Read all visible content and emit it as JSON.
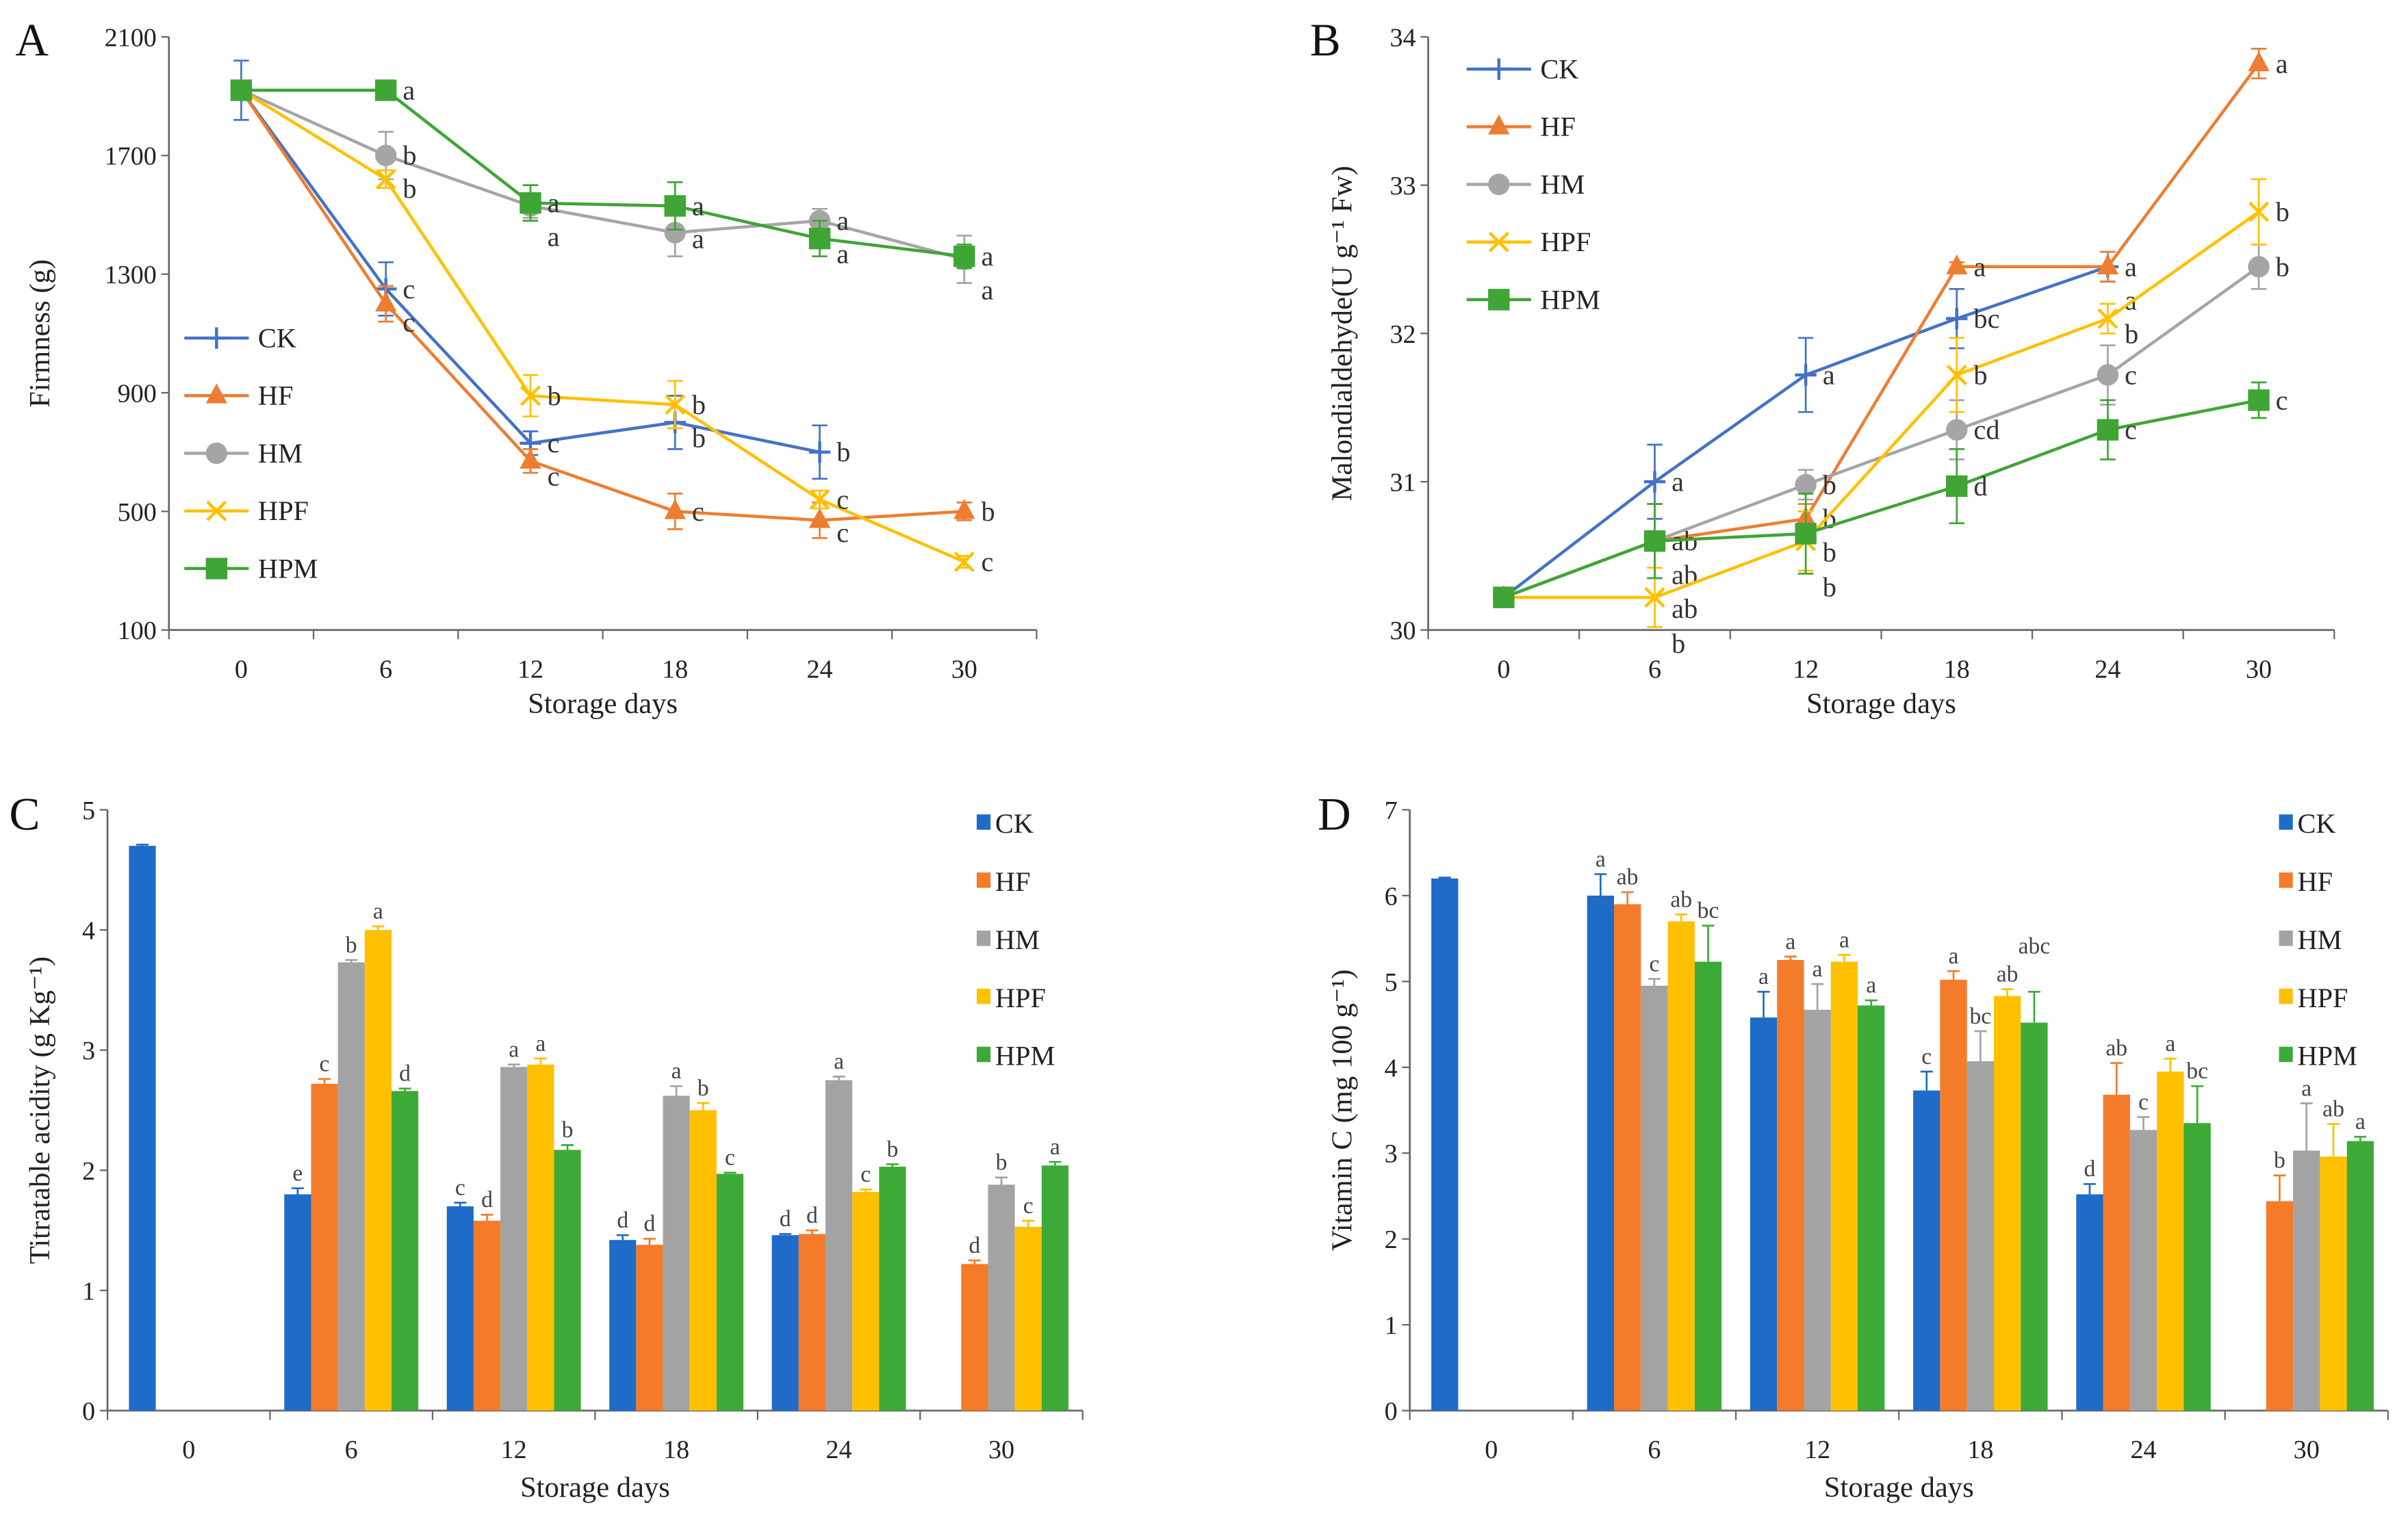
{
  "chart_data": [
    {
      "panel_label": "A",
      "type": "line",
      "xlabel": "Storage days",
      "ylabel": "Firmness (g)",
      "categories": [
        "0",
        "6",
        "12",
        "18",
        "24",
        "30"
      ],
      "ylim": [
        100,
        2100
      ],
      "yticks": [
        "100",
        "500",
        "900",
        "1300",
        "1700",
        "2100"
      ],
      "legend": "left",
      "series": [
        {
          "name": "CK",
          "color": "#4472C4",
          "marker": "plus",
          "values": [
            1920,
            1250,
            730,
            800,
            700,
            null
          ],
          "errors": [
            100,
            90,
            40,
            90,
            90,
            null
          ],
          "letters": [
            null,
            "c",
            "c",
            "b",
            "b",
            null
          ]
        },
        {
          "name": "HF",
          "color": "#ED7D31",
          "marker": "triangle",
          "values": [
            1920,
            1200,
            670,
            500,
            470,
            500
          ],
          "errors": [
            30,
            60,
            40,
            60,
            60,
            30
          ],
          "letters": [
            null,
            "c",
            "c",
            "c",
            "c",
            "b"
          ]
        },
        {
          "name": "HM",
          "color": "#A5A5A5",
          "marker": "circle",
          "values": [
            1920,
            1700,
            1530,
            1440,
            1480,
            1350
          ],
          "errors": [
            30,
            80,
            40,
            80,
            40,
            80
          ],
          "letters": [
            null,
            "b",
            "a",
            "a",
            "a",
            "a"
          ]
        },
        {
          "name": "HPF",
          "color": "#FFC000",
          "marker": "x",
          "values": [
            1920,
            1620,
            890,
            860,
            540,
            330
          ],
          "errors": [
            30,
            30,
            70,
            80,
            30,
            20
          ],
          "letters": [
            null,
            "b",
            "b",
            "b",
            "c",
            "c"
          ]
        },
        {
          "name": "HPM",
          "color": "#3FA535",
          "marker": "square",
          "values": [
            1920,
            1920,
            1540,
            1530,
            1420,
            1360
          ],
          "errors": [
            30,
            20,
            60,
            80,
            60,
            40
          ],
          "letters": [
            null,
            "a",
            "a",
            "a",
            "a",
            "a"
          ]
        }
      ]
    },
    {
      "panel_label": "B",
      "type": "line",
      "xlabel": "Storage days",
      "ylabel": "Malondialdehyde(U g⁻¹ Fw)",
      "categories": [
        "0",
        "6",
        "12",
        "18",
        "24",
        "30"
      ],
      "ylim": [
        30,
        34
      ],
      "yticks": [
        "30",
        "31",
        "32",
        "33",
        "34"
      ],
      "legend": "top-left",
      "series": [
        {
          "name": "CK",
          "color": "#4472C4",
          "marker": "plus",
          "values": [
            30.22,
            31.0,
            31.72,
            32.1,
            32.45,
            null
          ],
          "errors": [
            0.03,
            0.25,
            0.25,
            0.2,
            0.1,
            null
          ],
          "letters": [
            null,
            "a",
            "a",
            "bc",
            "a",
            null
          ]
        },
        {
          "name": "HF",
          "color": "#ED7D31",
          "marker": "triangle",
          "values": [
            30.22,
            30.6,
            30.75,
            32.45,
            32.45,
            33.82
          ],
          "errors": [
            0.03,
            0.25,
            0.1,
            0.03,
            0.1,
            0.1
          ],
          "letters": [
            null,
            "ab",
            "b",
            "a",
            "a",
            "a"
          ]
        },
        {
          "name": "HM",
          "color": "#A5A5A5",
          "marker": "circle",
          "values": [
            30.22,
            30.6,
            30.98,
            31.35,
            31.72,
            32.45
          ],
          "errors": [
            0.03,
            0.25,
            0.1,
            0.2,
            0.2,
            0.15
          ],
          "letters": [
            null,
            "ab",
            "b",
            "cd",
            "c",
            "b"
          ]
        },
        {
          "name": "HPF",
          "color": "#FFC000",
          "marker": "x",
          "values": [
            30.22,
            30.22,
            30.6,
            31.72,
            32.1,
            32.82
          ],
          "errors": [
            0.03,
            0.2,
            0.2,
            0.25,
            0.1,
            0.22
          ],
          "letters": [
            null,
            "b",
            "b",
            "b",
            "b",
            "b"
          ]
        },
        {
          "name": "HPM",
          "color": "#3FA535",
          "marker": "square",
          "values": [
            30.22,
            30.6,
            30.65,
            30.97,
            31.35,
            31.55
          ],
          "errors": [
            0.03,
            0.25,
            0.27,
            0.25,
            0.2,
            0.12
          ],
          "letters": [
            null,
            "ab",
            "b",
            "d",
            "c",
            "c"
          ]
        }
      ]
    },
    {
      "panel_label": "C",
      "type": "bar",
      "xlabel": "Storage days",
      "ylabel": "Titratable acidity (g Kg⁻¹)",
      "categories": [
        "0",
        "6",
        "12",
        "18",
        "24",
        "30"
      ],
      "ylim": [
        0,
        5
      ],
      "yticks": [
        "0",
        "1",
        "2",
        "3",
        "4",
        "5"
      ],
      "legend": "top-right",
      "series": [
        {
          "name": "CK",
          "color": "#1F6BC8",
          "values": [
            4.7,
            1.8,
            1.7,
            1.42,
            1.46,
            null
          ],
          "errors": [
            0.01,
            0.05,
            0.03,
            0.04,
            0.01,
            null
          ],
          "letters": [
            null,
            "e",
            "c",
            "d",
            "d",
            null
          ]
        },
        {
          "name": "HF",
          "color": "#F47B2A",
          "values": [
            null,
            2.72,
            1.58,
            1.38,
            1.47,
            1.22
          ],
          "errors": [
            null,
            0.04,
            0.05,
            0.05,
            0.03,
            0.03
          ],
          "letters": [
            null,
            "c",
            "d",
            "d",
            "d",
            "d"
          ]
        },
        {
          "name": "HM",
          "color": "#A3A3A3",
          "values": [
            null,
            3.73,
            2.86,
            2.62,
            2.75,
            1.88
          ],
          "errors": [
            null,
            0.02,
            0.02,
            0.08,
            0.03,
            0.06
          ],
          "letters": [
            null,
            "b",
            "a",
            "a",
            "a",
            "b"
          ]
        },
        {
          "name": "HPF",
          "color": "#FFC000",
          "values": [
            null,
            4.0,
            2.88,
            2.5,
            1.82,
            1.53
          ],
          "errors": [
            null,
            0.03,
            0.05,
            0.06,
            0.02,
            0.05
          ],
          "letters": [
            null,
            "a",
            "a",
            "b",
            "c",
            "c"
          ]
        },
        {
          "name": "HPM",
          "color": "#3DAA38",
          "values": [
            null,
            2.66,
            2.17,
            1.97,
            2.03,
            2.04
          ],
          "errors": [
            null,
            0.02,
            0.04,
            0.01,
            0.02,
            0.03
          ],
          "letters": [
            null,
            "d",
            "b",
            "c",
            "b",
            "a"
          ]
        }
      ]
    },
    {
      "panel_label": "D",
      "type": "bar",
      "xlabel": "Storage days",
      "ylabel": "Vitamin C (mg 100 g⁻¹)",
      "categories": [
        "0",
        "6",
        "12",
        "18",
        "24",
        "30"
      ],
      "ylim": [
        0,
        7
      ],
      "yticks": [
        "0",
        "1",
        "2",
        "3",
        "4",
        "5",
        "6",
        "7"
      ],
      "legend": "top-right",
      "series": [
        {
          "name": "CK",
          "color": "#1F6BC8",
          "values": [
            6.2,
            6.0,
            4.58,
            3.73,
            2.52,
            null
          ],
          "errors": [
            0.01,
            0.25,
            0.3,
            0.22,
            0.12,
            null
          ],
          "letters": [
            null,
            "a",
            "a",
            "c",
            "d",
            null
          ]
        },
        {
          "name": "HF",
          "color": "#F47B2A",
          "values": [
            null,
            5.9,
            5.25,
            5.02,
            3.68,
            2.44
          ],
          "errors": [
            null,
            0.14,
            0.04,
            0.1,
            0.37,
            0.3
          ],
          "letters": [
            null,
            "ab",
            "a",
            "a",
            "ab",
            "b"
          ]
        },
        {
          "name": "HM",
          "color": "#A3A3A3",
          "values": [
            null,
            4.95,
            4.67,
            4.07,
            3.27,
            3.03
          ],
          "errors": [
            null,
            0.08,
            0.3,
            0.35,
            0.15,
            0.55
          ],
          "letters": [
            null,
            "c",
            "a",
            "bc",
            "c",
            "a"
          ]
        },
        {
          "name": "HPF",
          "color": "#FFC000",
          "values": [
            null,
            5.7,
            5.23,
            4.83,
            3.95,
            2.96
          ],
          "errors": [
            null,
            0.08,
            0.08,
            0.08,
            0.15,
            0.38
          ],
          "letters": [
            null,
            "ab",
            "a",
            "ab",
            "a",
            "ab"
          ]
        },
        {
          "name": "HPM",
          "color": "#3DAA38",
          "values": [
            null,
            5.23,
            4.72,
            4.52,
            3.35,
            3.14
          ],
          "errors": [
            null,
            0.42,
            0.06,
            0.36,
            0.43,
            0.05
          ],
          "letters": [
            null,
            "bc",
            "a",
            "abc",
            "bc",
            "a"
          ]
        }
      ]
    }
  ]
}
